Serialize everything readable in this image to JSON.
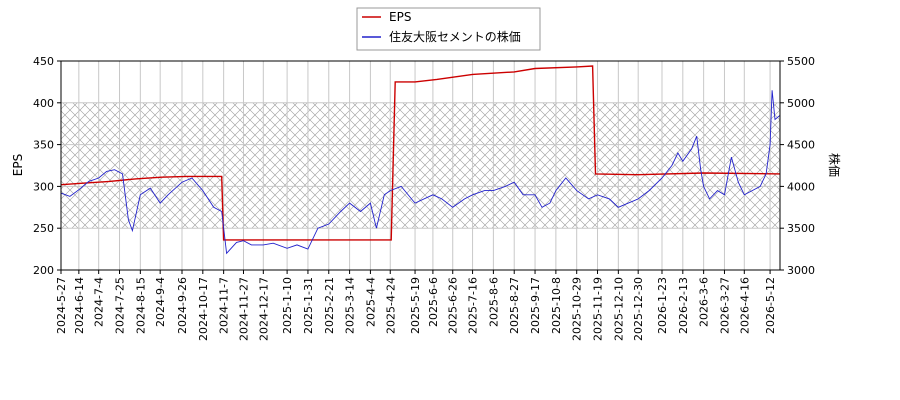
{
  "chart_data": {
    "type": "line",
    "title": "",
    "xlabel": "",
    "y_left": {
      "label": "EPS",
      "range": [
        200,
        450
      ],
      "ticks": [
        200,
        250,
        300,
        350,
        400,
        450
      ]
    },
    "y_right": {
      "label": "株価",
      "range": [
        3000,
        5500
      ],
      "ticks": [
        3000,
        3500,
        4000,
        4500,
        5000,
        5500
      ]
    },
    "x_range": [
      "2024-05-27",
      "2026-05-22"
    ],
    "x_ticks": [
      "2024-5-27",
      "2024-6-14",
      "2024-7-4",
      "2024-7-25",
      "2024-8-15",
      "2024-9-4",
      "2024-9-26",
      "2024-10-17",
      "2024-11-7",
      "2024-11-27",
      "2024-12-17",
      "2025-1-10",
      "2025-1-31",
      "2025-2-21",
      "2025-3-14",
      "2025-4-4",
      "2025-4-24",
      "2025-5-19",
      "2025-6-6",
      "2025-6-26",
      "2025-7-16",
      "2025-8-6",
      "2025-8-27",
      "2025-9-17",
      "2025-10-8",
      "2025-10-29",
      "2025-11-19",
      "2025-12-10",
      "2025-12-30",
      "2026-1-23",
      "2026-2-13",
      "2026-3-6",
      "2026-3-27",
      "2026-4-16",
      "2026-5-12"
    ],
    "grid": true,
    "hatched_band": {
      "axis": "left",
      "range": [
        250,
        400
      ]
    },
    "legend": {
      "placement": "top-center"
    },
    "series": [
      {
        "name": "EPS",
        "axis": "left",
        "color": "#cc0000",
        "points": [
          [
            "2024-05-27",
            302
          ],
          [
            "2024-06-20",
            304
          ],
          [
            "2024-07-15",
            306
          ],
          [
            "2024-08-10",
            309
          ],
          [
            "2024-09-05",
            311
          ],
          [
            "2024-10-01",
            312
          ],
          [
            "2024-11-05",
            312
          ],
          [
            "2024-11-07",
            236
          ],
          [
            "2025-01-31",
            236
          ],
          [
            "2025-04-25",
            236
          ],
          [
            "2025-04-29",
            425
          ],
          [
            "2025-05-19",
            425
          ],
          [
            "2025-06-10",
            428
          ],
          [
            "2025-07-16",
            434
          ],
          [
            "2025-08-27",
            437
          ],
          [
            "2025-09-17",
            441
          ],
          [
            "2025-10-29",
            443
          ],
          [
            "2025-11-14",
            444
          ],
          [
            "2025-11-17",
            315
          ],
          [
            "2025-12-30",
            314
          ],
          [
            "2026-03-06",
            316
          ],
          [
            "2026-05-22",
            315
          ]
        ]
      },
      {
        "name": "住友大阪セメントの株価",
        "axis": "right",
        "color": "#2222cc",
        "points": [
          [
            "2024-05-27",
            3920
          ],
          [
            "2024-06-05",
            3880
          ],
          [
            "2024-06-14",
            3960
          ],
          [
            "2024-06-24",
            4060
          ],
          [
            "2024-07-04",
            4100
          ],
          [
            "2024-07-12",
            4180
          ],
          [
            "2024-07-20",
            4200
          ],
          [
            "2024-07-28",
            4150
          ],
          [
            "2024-08-03",
            3600
          ],
          [
            "2024-08-07",
            3470
          ],
          [
            "2024-08-15",
            3900
          ],
          [
            "2024-08-25",
            3980
          ],
          [
            "2024-09-04",
            3800
          ],
          [
            "2024-09-12",
            3900
          ],
          [
            "2024-09-26",
            4050
          ],
          [
            "2024-10-06",
            4100
          ],
          [
            "2024-10-17",
            3950
          ],
          [
            "2024-10-28",
            3750
          ],
          [
            "2024-11-05",
            3700
          ],
          [
            "2024-11-10",
            3200
          ],
          [
            "2024-11-20",
            3330
          ],
          [
            "2024-11-27",
            3350
          ],
          [
            "2024-12-05",
            3300
          ],
          [
            "2024-12-17",
            3300
          ],
          [
            "2024-12-27",
            3320
          ],
          [
            "2025-01-10",
            3260
          ],
          [
            "2025-01-20",
            3300
          ],
          [
            "2025-01-31",
            3250
          ],
          [
            "2025-02-10",
            3500
          ],
          [
            "2025-02-21",
            3550
          ],
          [
            "2025-03-05",
            3700
          ],
          [
            "2025-03-14",
            3800
          ],
          [
            "2025-03-25",
            3700
          ],
          [
            "2025-04-04",
            3800
          ],
          [
            "2025-04-10",
            3500
          ],
          [
            "2025-04-18",
            3900
          ],
          [
            "2025-04-24",
            3950
          ],
          [
            "2025-05-05",
            4000
          ],
          [
            "2025-05-19",
            3800
          ],
          [
            "2025-06-06",
            3900
          ],
          [
            "2025-06-15",
            3850
          ],
          [
            "2025-06-26",
            3750
          ],
          [
            "2025-07-08",
            3850
          ],
          [
            "2025-07-16",
            3900
          ],
          [
            "2025-07-28",
            3950
          ],
          [
            "2025-08-06",
            3950
          ],
          [
            "2025-08-18",
            4000
          ],
          [
            "2025-08-27",
            4050
          ],
          [
            "2025-09-05",
            3900
          ],
          [
            "2025-09-17",
            3900
          ],
          [
            "2025-09-24",
            3750
          ],
          [
            "2025-10-02",
            3800
          ],
          [
            "2025-10-08",
            3950
          ],
          [
            "2025-10-18",
            4100
          ],
          [
            "2025-10-29",
            3950
          ],
          [
            "2025-11-10",
            3850
          ],
          [
            "2025-11-19",
            3900
          ],
          [
            "2025-12-01",
            3850
          ],
          [
            "2025-12-10",
            3750
          ],
          [
            "2025-12-20",
            3800
          ],
          [
            "2025-12-30",
            3850
          ],
          [
            "2026-01-10",
            3950
          ],
          [
            "2026-01-23",
            4100
          ],
          [
            "2026-02-02",
            4250
          ],
          [
            "2026-02-08",
            4400
          ],
          [
            "2026-02-13",
            4300
          ],
          [
            "2026-02-22",
            4450
          ],
          [
            "2026-02-27",
            4600
          ],
          [
            "2026-03-03",
            4200
          ],
          [
            "2026-03-06",
            4000
          ],
          [
            "2026-03-12",
            3850
          ],
          [
            "2026-03-20",
            3950
          ],
          [
            "2026-03-27",
            3900
          ],
          [
            "2026-04-03",
            4350
          ],
          [
            "2026-04-10",
            4050
          ],
          [
            "2026-04-16",
            3900
          ],
          [
            "2026-04-24",
            3950
          ],
          [
            "2026-05-02",
            4000
          ],
          [
            "2026-05-08",
            4150
          ],
          [
            "2026-05-12",
            4500
          ],
          [
            "2026-05-14",
            5150
          ],
          [
            "2026-05-17",
            4800
          ],
          [
            "2026-05-22",
            4850
          ]
        ]
      }
    ]
  }
}
